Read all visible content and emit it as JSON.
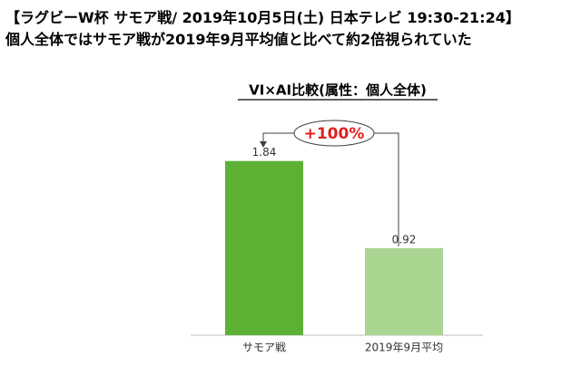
{
  "header": {
    "line1": "【ラグビーW杯 サモア戦/ 2019年10月5日(土) 日本テレビ 19:30-21:24】",
    "line2": "個人全体ではサモア戦が2019年9月平均値と比べて約2倍視られていた"
  },
  "chart_data": {
    "type": "bar",
    "title": "VI×AI比較(属性：個人全体)",
    "categories": [
      "サモア戦",
      "2019年9月平均"
    ],
    "values": [
      1.84,
      0.92
    ],
    "colors": [
      "#5cb135",
      "#a9d591"
    ],
    "annotation": "+100%"
  }
}
